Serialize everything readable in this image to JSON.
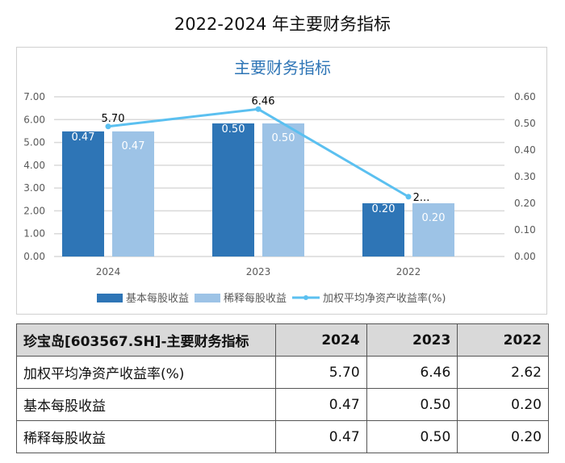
{
  "page_title": "2022-2024 年主要财务指标",
  "chart_data": {
    "type": "bar+line",
    "title": "主要财务指标",
    "categories": [
      "2024",
      "2023",
      "2022"
    ],
    "series": [
      {
        "name": "基本每股收益",
        "type": "bar",
        "axis": "right",
        "values": [
          0.47,
          0.5,
          0.2
        ],
        "labels": [
          "0.47",
          "0.50",
          "0.20"
        ],
        "color": "#2e75b6"
      },
      {
        "name": "稀释每股收益",
        "type": "bar",
        "axis": "right",
        "values": [
          0.47,
          0.5,
          0.2
        ],
        "labels": [
          "0.47",
          "0.50",
          "0.20"
        ],
        "color": "#9dc3e6"
      },
      {
        "name": "加权平均净资产收益率(%)",
        "type": "line",
        "axis": "left",
        "values": [
          5.7,
          6.46,
          2.62
        ],
        "labels": [
          "5.70",
          "6.46",
          "2..."
        ],
        "color": "#5bc0f0"
      }
    ],
    "left_axis": {
      "range": [
        0,
        7
      ],
      "ticks": [
        "0.00",
        "1.00",
        "2.00",
        "3.00",
        "4.00",
        "5.00",
        "6.00",
        "7.00"
      ]
    },
    "right_axis": {
      "range": [
        0,
        0.6
      ],
      "ticks": [
        "0.00",
        "0.10",
        "0.20",
        "0.30",
        "0.40",
        "0.50",
        "0.60"
      ]
    },
    "grid": true,
    "legend": "bottom"
  },
  "table": {
    "header": [
      "珍宝岛[603567.SH]-主要财务指标",
      "2024",
      "2023",
      "2022"
    ],
    "rows": [
      [
        "加权平均净资产收益率(%)",
        "5.70",
        "6.46",
        "2.62"
      ],
      [
        "基本每股收益",
        "0.47",
        "0.50",
        "0.20"
      ],
      [
        "稀释每股收益",
        "0.47",
        "0.50",
        "0.20"
      ]
    ]
  }
}
